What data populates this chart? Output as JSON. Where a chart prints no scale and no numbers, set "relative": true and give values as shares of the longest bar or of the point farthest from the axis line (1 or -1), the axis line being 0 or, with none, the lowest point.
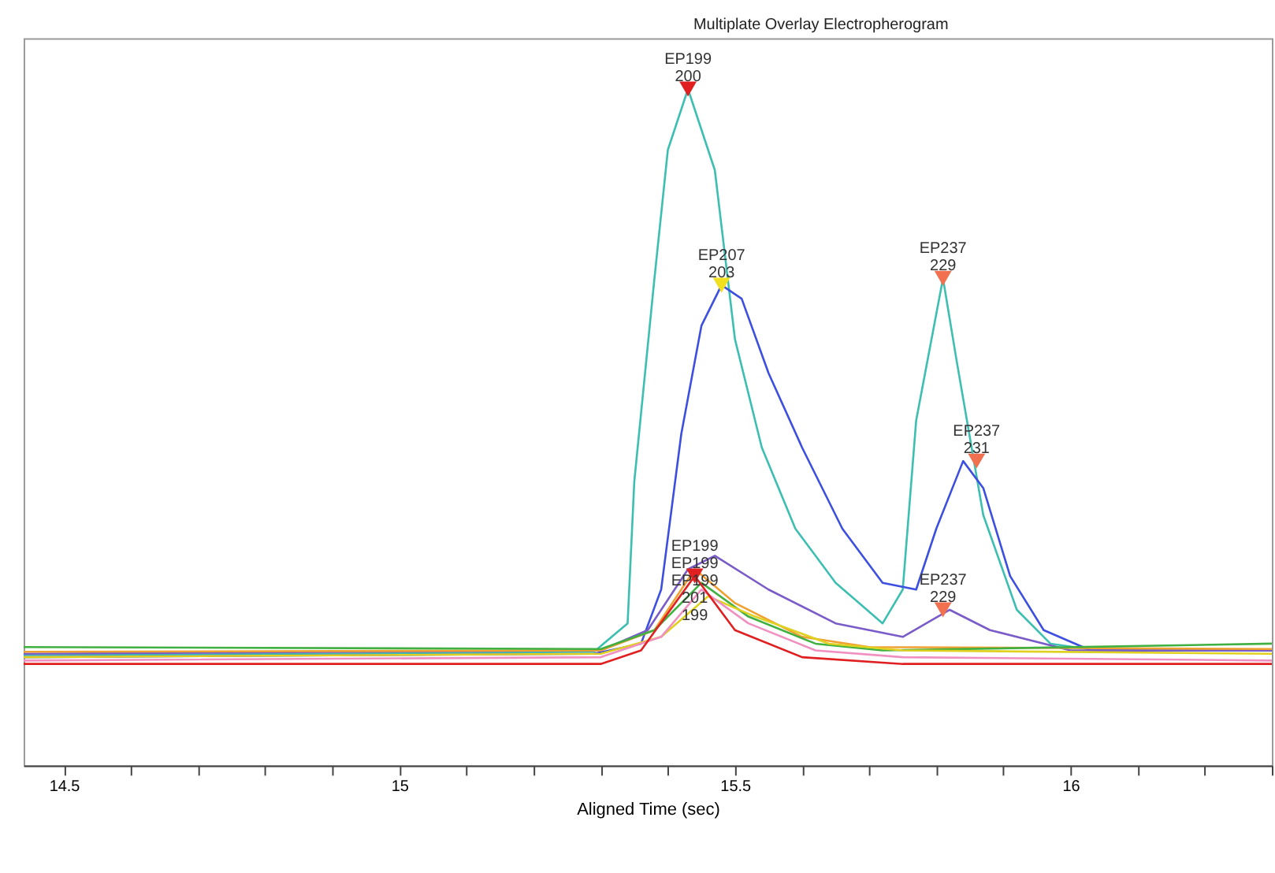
{
  "chart_data": {
    "type": "line",
    "title": "Multiplate Overlay Electropherogram",
    "xlabel": "Aligned Time (sec)",
    "relative": true,
    "tick_labels": "x",
    "grid": false,
    "line_style": "solid",
    "marker": "none",
    "xlim": [
      14.44,
      16.3
    ],
    "xticks": [
      14.5,
      {
        "value": 14.6,
        "label": null
      },
      {
        "value": 14.7,
        "label": null
      },
      {
        "value": 14.8,
        "label": null
      },
      {
        "value": 14.9,
        "label": null
      },
      15,
      {
        "value": 15.1,
        "label": null
      },
      {
        "value": 15.2,
        "label": null
      },
      {
        "value": 15.3,
        "label": null
      },
      {
        "value": 15.4,
        "label": null
      },
      15.5,
      {
        "value": 15.6,
        "label": null
      },
      {
        "value": 15.7,
        "label": null
      },
      {
        "value": 15.8,
        "label": null
      },
      {
        "value": 15.9,
        "label": null
      },
      16,
      {
        "value": 16.1,
        "label": null
      },
      {
        "value": 16.2,
        "label": null
      },
      {
        "value": 16.3,
        "label": null
      }
    ],
    "series": [
      {
        "color": "#3cbfb0",
        "x": [
          14.44,
          14.87,
          15.29,
          15.34,
          15.35,
          15.38,
          15.4,
          15.43,
          15.47,
          15.5,
          15.54,
          15.59,
          15.65,
          15.72,
          15.75,
          15.77,
          15.81,
          15.83,
          15.87,
          15.92,
          15.97,
          16.04,
          16.3
        ],
        "values": [
          0.163,
          0.165,
          0.168,
          0.21,
          0.42,
          0.72,
          0.91,
          1.0,
          0.88,
          0.63,
          0.47,
          0.35,
          0.27,
          0.21,
          0.26,
          0.51,
          0.72,
          0.6,
          0.37,
          0.23,
          0.18,
          0.17,
          0.17
        ]
      },
      {
        "color": "#3d4fe0",
        "x": [
          14.44,
          15.29,
          15.36,
          15.39,
          15.42,
          15.45,
          15.48,
          15.51,
          15.55,
          15.6,
          15.66,
          15.72,
          15.77,
          15.8,
          15.84,
          15.87,
          15.91,
          15.96,
          16.03,
          16.3
        ],
        "values": [
          0.16,
          0.165,
          0.18,
          0.26,
          0.49,
          0.65,
          0.71,
          0.69,
          0.58,
          0.47,
          0.35,
          0.27,
          0.26,
          0.35,
          0.45,
          0.41,
          0.28,
          0.2,
          0.17,
          0.17
        ]
      },
      {
        "color": "#7a5cc8",
        "x": [
          14.44,
          15.3,
          15.37,
          15.43,
          15.47,
          15.55,
          15.65,
          15.75,
          15.82,
          15.88,
          16.0,
          16.3
        ],
        "values": [
          0.165,
          0.17,
          0.2,
          0.29,
          0.31,
          0.26,
          0.21,
          0.19,
          0.23,
          0.2,
          0.17,
          0.17
        ]
      },
      {
        "color": "#f0a030",
        "x": [
          14.44,
          15.3,
          15.38,
          15.44,
          15.5,
          15.6,
          15.7,
          16.3
        ],
        "values": [
          0.168,
          0.17,
          0.2,
          0.29,
          0.24,
          0.19,
          0.175,
          0.172
        ]
      },
      {
        "color": "#40b040",
        "x": [
          14.44,
          15.3,
          15.38,
          15.45,
          15.52,
          15.62,
          15.72,
          16.3
        ],
        "values": [
          0.175,
          0.172,
          0.2,
          0.27,
          0.22,
          0.18,
          0.17,
          0.18
        ]
      },
      {
        "color": "#e0d020",
        "x": [
          14.44,
          15.3,
          15.39,
          15.46,
          15.53,
          15.64,
          15.75,
          16.3
        ],
        "values": [
          0.16,
          0.165,
          0.19,
          0.25,
          0.22,
          0.18,
          0.17,
          0.165
        ]
      },
      {
        "color": "#f090c0",
        "x": [
          14.44,
          15.3,
          15.39,
          15.45,
          15.52,
          15.62,
          15.75,
          16.3
        ],
        "values": [
          0.155,
          0.16,
          0.19,
          0.26,
          0.21,
          0.17,
          0.16,
          0.155
        ]
      },
      {
        "color": "#e02020",
        "x": [
          14.44,
          15.3,
          15.36,
          15.44,
          15.5,
          15.6,
          15.75,
          16.3
        ],
        "values": [
          0.15,
          0.15,
          0.17,
          0.28,
          0.2,
          0.16,
          0.15,
          0.15
        ]
      },
      {
        "type": "scatter",
        "marker": "triangle",
        "x": [
          15.43,
          15.48,
          15.81,
          15.86,
          15.81,
          15.44
        ],
        "values": [
          1.0,
          0.71,
          0.72,
          0.45,
          0.23,
          0.28
        ],
        "colors": [
          "#e02020",
          "#f0e020",
          "#f07050",
          "#f07050",
          "#f07050",
          "#e02020"
        ]
      }
    ],
    "annotations": [
      {
        "text": "EP199\n200",
        "x": 15.43,
        "y": 1.0
      },
      {
        "text": "EP207\n203",
        "x": 15.48,
        "y": 0.71
      },
      {
        "text": "EP237\n229",
        "x": 15.81,
        "y": 0.72
      },
      {
        "text": "EP237\n231",
        "x": 15.86,
        "y": 0.45
      },
      {
        "text": "EP237\n229",
        "x": 15.81,
        "y": 0.23
      },
      {
        "text": "EP199\nEP199\nEP199\n201\n199",
        "x": 15.44,
        "y": 0.28
      }
    ]
  }
}
